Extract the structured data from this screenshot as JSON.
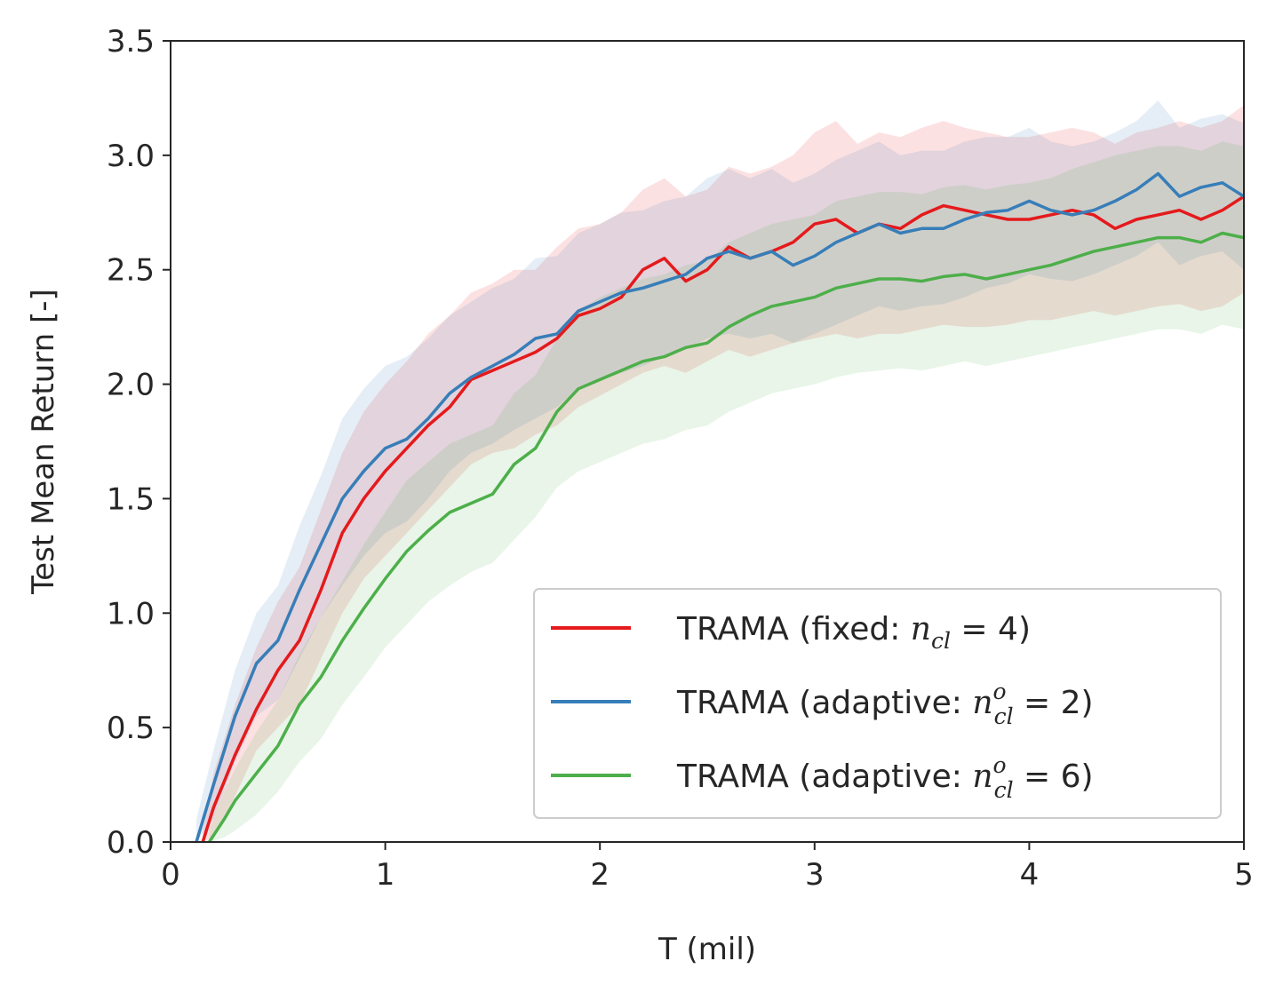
{
  "chart_data": {
    "type": "line",
    "title": "",
    "xlabel": "T (mil)",
    "ylabel": "Test Mean Return [-]",
    "xlim": [
      0,
      5
    ],
    "ylim": [
      0,
      3.5
    ],
    "xticks": [
      "0",
      "1",
      "2",
      "3",
      "4",
      "5"
    ],
    "yticks": [
      "0.0",
      "0.5",
      "1.0",
      "1.5",
      "2.0",
      "2.5",
      "3.0",
      "3.5"
    ],
    "grid": false,
    "legend_position": "bottom-right",
    "series": [
      {
        "name": "TRAMA (fixed: n_cl = 4)",
        "legend_prefix": "TRAMA (fixed: ",
        "legend_var": "n",
        "legend_sub": "cl",
        "legend_sup": "",
        "legend_suffix": " = 4)",
        "color": "#e41a1c",
        "x": [
          0.15,
          0.2,
          0.3,
          0.4,
          0.5,
          0.6,
          0.7,
          0.8,
          0.9,
          1.0,
          1.1,
          1.2,
          1.3,
          1.4,
          1.5,
          1.6,
          1.7,
          1.8,
          1.9,
          2.0,
          2.1,
          2.2,
          2.3,
          2.4,
          2.5,
          2.6,
          2.7,
          2.8,
          2.9,
          3.0,
          3.1,
          3.2,
          3.3,
          3.4,
          3.5,
          3.6,
          3.7,
          3.8,
          3.9,
          4.0,
          4.1,
          4.2,
          4.3,
          4.4,
          4.5,
          4.6,
          4.7,
          4.8,
          4.9,
          5.0
        ],
        "values": [
          0.0,
          0.15,
          0.38,
          0.58,
          0.75,
          0.88,
          1.1,
          1.35,
          1.5,
          1.62,
          1.72,
          1.82,
          1.9,
          2.02,
          2.06,
          2.1,
          2.14,
          2.2,
          2.3,
          2.33,
          2.38,
          2.5,
          2.55,
          2.45,
          2.5,
          2.6,
          2.55,
          2.58,
          2.62,
          2.7,
          2.72,
          2.66,
          2.7,
          2.68,
          2.74,
          2.78,
          2.76,
          2.74,
          2.72,
          2.72,
          2.74,
          2.76,
          2.74,
          2.68,
          2.72,
          2.74,
          2.76,
          2.72,
          2.76,
          2.82
        ],
        "lower": [
          0.0,
          0.02,
          0.2,
          0.4,
          0.5,
          0.6,
          0.8,
          1.0,
          1.15,
          1.25,
          1.35,
          1.45,
          1.55,
          1.65,
          1.7,
          1.72,
          1.78,
          1.82,
          1.9,
          1.95,
          2.0,
          2.05,
          2.08,
          2.05,
          2.1,
          2.15,
          2.12,
          2.15,
          2.18,
          2.2,
          2.22,
          2.2,
          2.22,
          2.22,
          2.24,
          2.26,
          2.25,
          2.25,
          2.26,
          2.28,
          2.28,
          2.3,
          2.32,
          2.3,
          2.32,
          2.34,
          2.35,
          2.32,
          2.34,
          2.4
        ],
        "upper": [
          0.05,
          0.3,
          0.6,
          0.85,
          1.05,
          1.2,
          1.45,
          1.7,
          1.88,
          2.0,
          2.1,
          2.22,
          2.3,
          2.4,
          2.44,
          2.5,
          2.5,
          2.6,
          2.68,
          2.7,
          2.75,
          2.85,
          2.9,
          2.82,
          2.85,
          2.95,
          2.92,
          2.95,
          3.0,
          3.1,
          3.15,
          3.05,
          3.1,
          3.08,
          3.12,
          3.15,
          3.12,
          3.1,
          3.08,
          3.08,
          3.1,
          3.12,
          3.1,
          3.05,
          3.1,
          3.12,
          3.15,
          3.12,
          3.15,
          3.22
        ]
      },
      {
        "name": "TRAMA (adaptive: n_cl^o = 2)",
        "legend_prefix": "TRAMA (adaptive: ",
        "legend_var": "n",
        "legend_sub": "cl",
        "legend_sup": "o",
        "legend_suffix": " = 2)",
        "color": "#377eb8",
        "x": [
          0.12,
          0.2,
          0.3,
          0.4,
          0.5,
          0.6,
          0.7,
          0.8,
          0.9,
          1.0,
          1.1,
          1.2,
          1.3,
          1.4,
          1.5,
          1.6,
          1.7,
          1.8,
          1.9,
          2.0,
          2.1,
          2.2,
          2.3,
          2.4,
          2.5,
          2.6,
          2.7,
          2.8,
          2.9,
          3.0,
          3.1,
          3.2,
          3.3,
          3.4,
          3.5,
          3.6,
          3.7,
          3.8,
          3.9,
          4.0,
          4.1,
          4.2,
          4.3,
          4.4,
          4.5,
          4.6,
          4.7,
          4.8,
          4.9,
          5.0
        ],
        "values": [
          0.0,
          0.25,
          0.55,
          0.78,
          0.88,
          1.1,
          1.3,
          1.5,
          1.62,
          1.72,
          1.76,
          1.85,
          1.96,
          2.03,
          2.08,
          2.13,
          2.2,
          2.22,
          2.32,
          2.36,
          2.4,
          2.42,
          2.45,
          2.48,
          2.55,
          2.58,
          2.55,
          2.58,
          2.52,
          2.56,
          2.62,
          2.66,
          2.7,
          2.66,
          2.68,
          2.68,
          2.72,
          2.75,
          2.76,
          2.8,
          2.76,
          2.74,
          2.76,
          2.8,
          2.85,
          2.92,
          2.82,
          2.86,
          2.88,
          2.82
        ],
        "lower": [
          0.0,
          0.1,
          0.35,
          0.55,
          0.62,
          0.8,
          0.98,
          1.12,
          1.25,
          1.35,
          1.4,
          1.5,
          1.62,
          1.7,
          1.74,
          1.8,
          1.85,
          1.9,
          1.98,
          2.02,
          2.05,
          2.08,
          2.12,
          2.15,
          2.2,
          2.22,
          2.2,
          2.22,
          2.18,
          2.22,
          2.26,
          2.3,
          2.34,
          2.32,
          2.34,
          2.35,
          2.38,
          2.42,
          2.44,
          2.48,
          2.46,
          2.45,
          2.48,
          2.52,
          2.56,
          2.62,
          2.52,
          2.56,
          2.58,
          2.5
        ],
        "upper": [
          0.1,
          0.4,
          0.75,
          1.0,
          1.12,
          1.38,
          1.6,
          1.85,
          1.98,
          2.08,
          2.12,
          2.2,
          2.3,
          2.36,
          2.42,
          2.46,
          2.55,
          2.56,
          2.66,
          2.7,
          2.75,
          2.76,
          2.8,
          2.82,
          2.9,
          2.94,
          2.9,
          2.94,
          2.88,
          2.92,
          2.98,
          3.02,
          3.06,
          3.0,
          3.02,
          3.02,
          3.06,
          3.08,
          3.08,
          3.12,
          3.06,
          3.04,
          3.06,
          3.1,
          3.15,
          3.24,
          3.12,
          3.16,
          3.18,
          3.14
        ]
      },
      {
        "name": "TRAMA (adaptive: n_cl^o = 6)",
        "legend_prefix": "TRAMA (adaptive: ",
        "legend_var": "n",
        "legend_sub": "cl",
        "legend_sup": "o",
        "legend_suffix": " = 6)",
        "color": "#4daf4a",
        "x": [
          0.18,
          0.25,
          0.3,
          0.4,
          0.5,
          0.6,
          0.7,
          0.8,
          0.9,
          1.0,
          1.1,
          1.2,
          1.3,
          1.4,
          1.5,
          1.6,
          1.7,
          1.8,
          1.9,
          2.0,
          2.1,
          2.2,
          2.3,
          2.4,
          2.5,
          2.6,
          2.7,
          2.8,
          2.9,
          3.0,
          3.1,
          3.2,
          3.3,
          3.4,
          3.5,
          3.6,
          3.7,
          3.8,
          3.9,
          4.0,
          4.1,
          4.2,
          4.3,
          4.4,
          4.5,
          4.6,
          4.7,
          4.8,
          4.9,
          5.0
        ],
        "values": [
          0.0,
          0.1,
          0.18,
          0.3,
          0.42,
          0.6,
          0.72,
          0.88,
          1.02,
          1.15,
          1.27,
          1.36,
          1.44,
          1.48,
          1.52,
          1.65,
          1.72,
          1.88,
          1.98,
          2.02,
          2.06,
          2.1,
          2.12,
          2.16,
          2.18,
          2.25,
          2.3,
          2.34,
          2.36,
          2.38,
          2.42,
          2.44,
          2.46,
          2.46,
          2.45,
          2.47,
          2.48,
          2.46,
          2.48,
          2.5,
          2.52,
          2.55,
          2.58,
          2.6,
          2.62,
          2.64,
          2.64,
          2.62,
          2.66,
          2.64
        ],
        "lower": [
          0.0,
          0.02,
          0.05,
          0.12,
          0.22,
          0.35,
          0.45,
          0.6,
          0.72,
          0.85,
          0.95,
          1.05,
          1.12,
          1.18,
          1.22,
          1.32,
          1.42,
          1.55,
          1.62,
          1.66,
          1.7,
          1.74,
          1.76,
          1.8,
          1.82,
          1.88,
          1.92,
          1.96,
          1.98,
          2.0,
          2.03,
          2.05,
          2.06,
          2.07,
          2.06,
          2.08,
          2.1,
          2.08,
          2.1,
          2.12,
          2.14,
          2.16,
          2.18,
          2.2,
          2.22,
          2.24,
          2.24,
          2.22,
          2.26,
          2.24
        ],
        "upper": [
          0.05,
          0.22,
          0.32,
          0.48,
          0.62,
          0.82,
          0.98,
          1.14,
          1.3,
          1.44,
          1.58,
          1.66,
          1.74,
          1.78,
          1.82,
          1.96,
          2.04,
          2.2,
          2.32,
          2.38,
          2.42,
          2.46,
          2.48,
          2.52,
          2.54,
          2.62,
          2.66,
          2.7,
          2.72,
          2.74,
          2.8,
          2.82,
          2.84,
          2.84,
          2.83,
          2.86,
          2.87,
          2.85,
          2.87,
          2.88,
          2.9,
          2.94,
          2.97,
          3.0,
          3.02,
          3.04,
          3.04,
          3.02,
          3.06,
          3.04
        ]
      }
    ]
  }
}
